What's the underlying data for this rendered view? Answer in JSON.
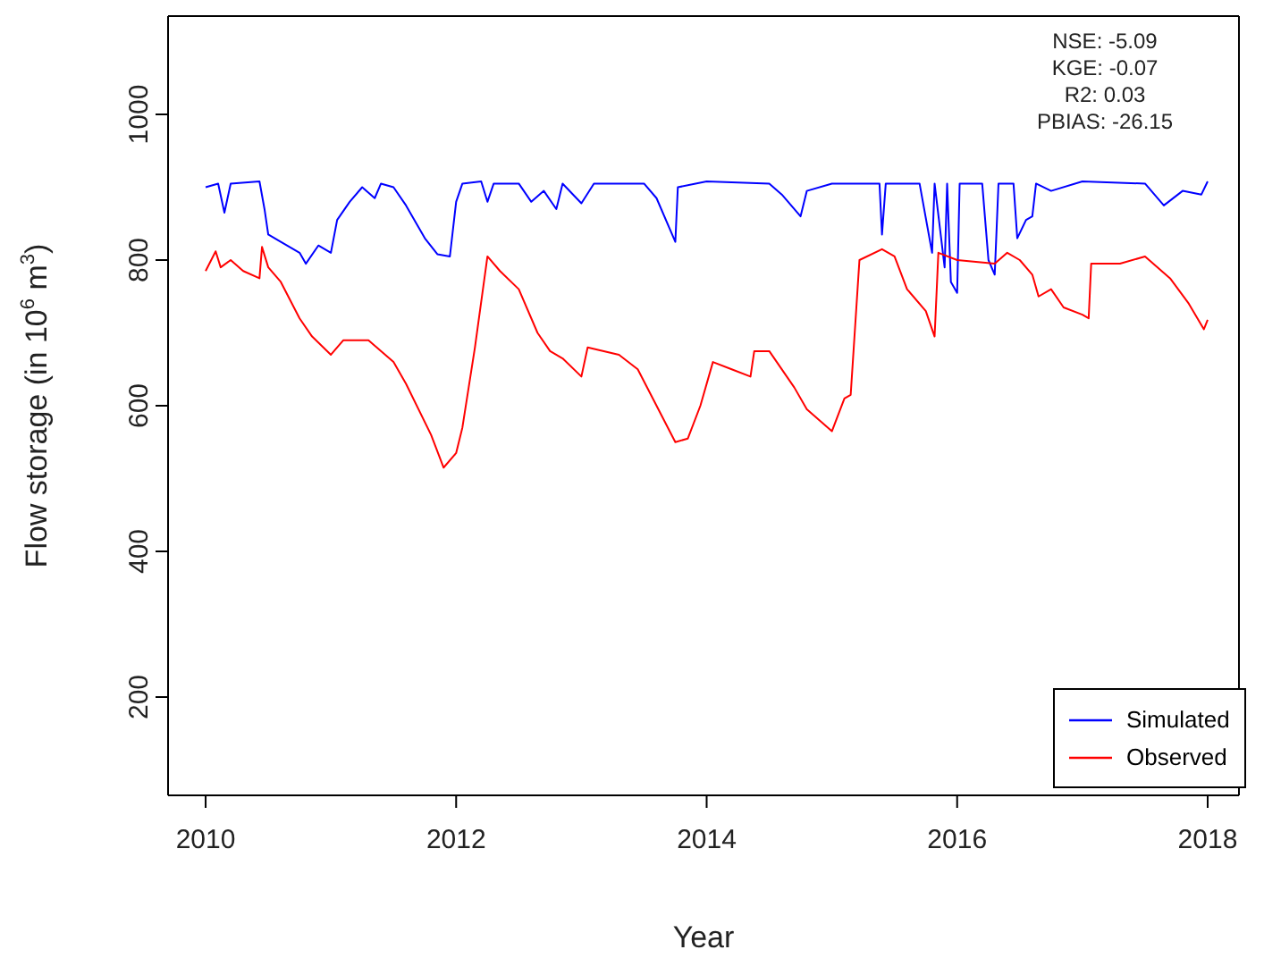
{
  "chart_data": {
    "type": "line",
    "xlabel": "Year",
    "ylabel": "Flow storage (in 10$^{6}$ m$^{3}$)",
    "annotations": [
      "NSE: -5.09",
      "KGE: -0.07",
      "R2: 0.03",
      "PBIAS: -26.15"
    ],
    "xlim": [
      2009.7,
      2018.25
    ],
    "ylim": [
      65,
      1135
    ],
    "xticks": [
      2010,
      2012,
      2014,
      2016,
      2018
    ],
    "yticks": [
      200,
      400,
      600,
      800,
      1000
    ],
    "legend": "bottom right",
    "marker": "none",
    "line_style": "solid",
    "series": [
      {
        "name": "Simulated",
        "color": "#0000ff",
        "x": [
          2010,
          2010.1,
          2010.15,
          2010.2,
          2010.43,
          2010.47,
          2010.5,
          2010.6,
          2010.75,
          2010.8,
          2010.9,
          2011,
          2011.05,
          2011.15,
          2011.25,
          2011.35,
          2011.4,
          2011.5,
          2011.6,
          2011.75,
          2011.85,
          2011.95,
          2012,
          2012.05,
          2012.2,
          2012.25,
          2012.3,
          2012.5,
          2012.6,
          2012.7,
          2012.8,
          2012.85,
          2013,
          2013.1,
          2013.5,
          2013.6,
          2013.75,
          2013.77,
          2014,
          2014.5,
          2014.6,
          2014.75,
          2014.8,
          2015,
          2015.38,
          2015.4,
          2015.43,
          2015.7,
          2015.8,
          2015.82,
          2015.9,
          2015.92,
          2015.95,
          2016,
          2016.02,
          2016.2,
          2016.25,
          2016.3,
          2016.33,
          2016.45,
          2016.48,
          2016.55,
          2016.6,
          2016.63,
          2016.75,
          2017,
          2017.5,
          2017.65,
          2017.8,
          2017.95,
          2018
        ],
        "values": [
          900,
          905,
          865,
          905,
          908,
          870,
          835,
          825,
          810,
          795,
          820,
          810,
          855,
          880,
          900,
          885,
          905,
          900,
          875,
          830,
          808,
          805,
          880,
          905,
          908,
          880,
          905,
          905,
          880,
          895,
          870,
          905,
          878,
          905,
          905,
          885,
          825,
          900,
          908,
          905,
          890,
          860,
          895,
          905,
          905,
          835,
          905,
          905,
          810,
          905,
          790,
          905,
          770,
          755,
          905,
          905,
          800,
          780,
          905,
          905,
          830,
          855,
          860,
          905,
          895,
          908,
          905,
          875,
          895,
          890,
          908
        ]
      },
      {
        "name": "Observed",
        "color": "#ff0000",
        "x": [
          2010,
          2010.08,
          2010.12,
          2010.2,
          2010.3,
          2010.43,
          2010.45,
          2010.5,
          2010.6,
          2010.75,
          2010.85,
          2011,
          2011.1,
          2011.3,
          2011.5,
          2011.6,
          2011.8,
          2011.9,
          2012,
          2012.05,
          2012.1,
          2012.15,
          2012.25,
          2012.35,
          2012.5,
          2012.65,
          2012.75,
          2012.85,
          2013,
          2013.05,
          2013.3,
          2013.45,
          2013.6,
          2013.75,
          2013.85,
          2013.95,
          2014.05,
          2014.2,
          2014.35,
          2014.38,
          2014.5,
          2014.7,
          2014.8,
          2015,
          2015.1,
          2015.15,
          2015.22,
          2015.4,
          2015.5,
          2015.6,
          2015.75,
          2015.82,
          2015.85,
          2016,
          2016.3,
          2016.4,
          2016.5,
          2016.6,
          2016.65,
          2016.75,
          2016.85,
          2017,
          2017.05,
          2017.07,
          2017.3,
          2017.5,
          2017.7,
          2017.85,
          2017.97,
          2018
        ],
        "values": [
          785,
          812,
          790,
          800,
          785,
          775,
          818,
          790,
          770,
          720,
          695,
          670,
          690,
          690,
          660,
          630,
          560,
          515,
          535,
          570,
          625,
          680,
          805,
          785,
          760,
          700,
          675,
          665,
          640,
          680,
          670,
          650,
          600,
          550,
          555,
          600,
          660,
          650,
          640,
          675,
          675,
          625,
          595,
          565,
          610,
          615,
          800,
          815,
          805,
          760,
          730,
          695,
          810,
          800,
          795,
          810,
          800,
          780,
          750,
          760,
          735,
          725,
          720,
          795,
          795,
          805,
          775,
          740,
          705,
          718
        ]
      }
    ]
  }
}
